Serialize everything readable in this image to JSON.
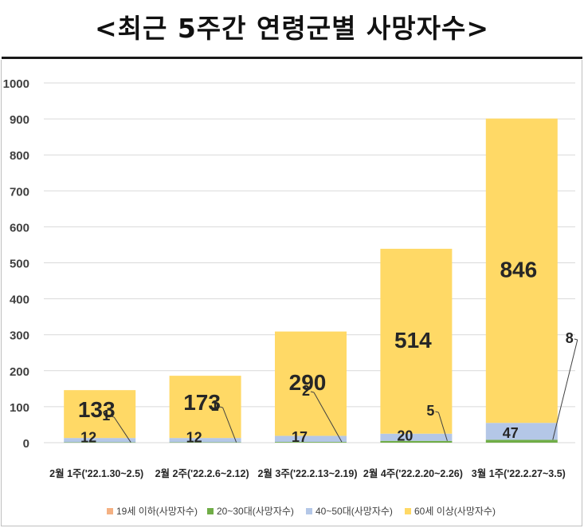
{
  "title": "<최근 5주간 연령군별 사망자수>",
  "colors": {
    "under19": "#F4B183",
    "age20_30": "#70AD47",
    "age40_50": "#B4C7E7",
    "age60plus": "#FFD966",
    "grid": "#d9d9d9",
    "text": "#404040"
  },
  "chart_data": {
    "type": "bar",
    "stacked": true,
    "title": "<최근 5주간 연령군별 사망자수>",
    "categories": [
      "2월 1주('22.1.30~2.5)",
      "2월 2주('22.2.6~2.12)",
      "2월 3주('22.2.13~2.19)",
      "2월 4주('22.2.20~2.26)",
      "3월 1주('22.2.27~3.5)"
    ],
    "series": [
      {
        "name": "19세 이하(사망자수)",
        "values": [
          0,
          0,
          0,
          0,
          0
        ]
      },
      {
        "name": "20~30대(사망자수)",
        "values": [
          1,
          1,
          2,
          5,
          8
        ]
      },
      {
        "name": "40~50대(사망자수)",
        "values": [
          12,
          12,
          17,
          20,
          47
        ]
      },
      {
        "name": "60세 이상(사망자수)",
        "values": [
          133,
          173,
          290,
          514,
          846
        ]
      }
    ],
    "ylim": [
      0,
      1000
    ],
    "yticks": [
      "0",
      "100",
      "200",
      "300",
      "400",
      "500",
      "600",
      "700",
      "800",
      "900",
      "1000"
    ],
    "grid": true,
    "legend_position": "bottom"
  }
}
